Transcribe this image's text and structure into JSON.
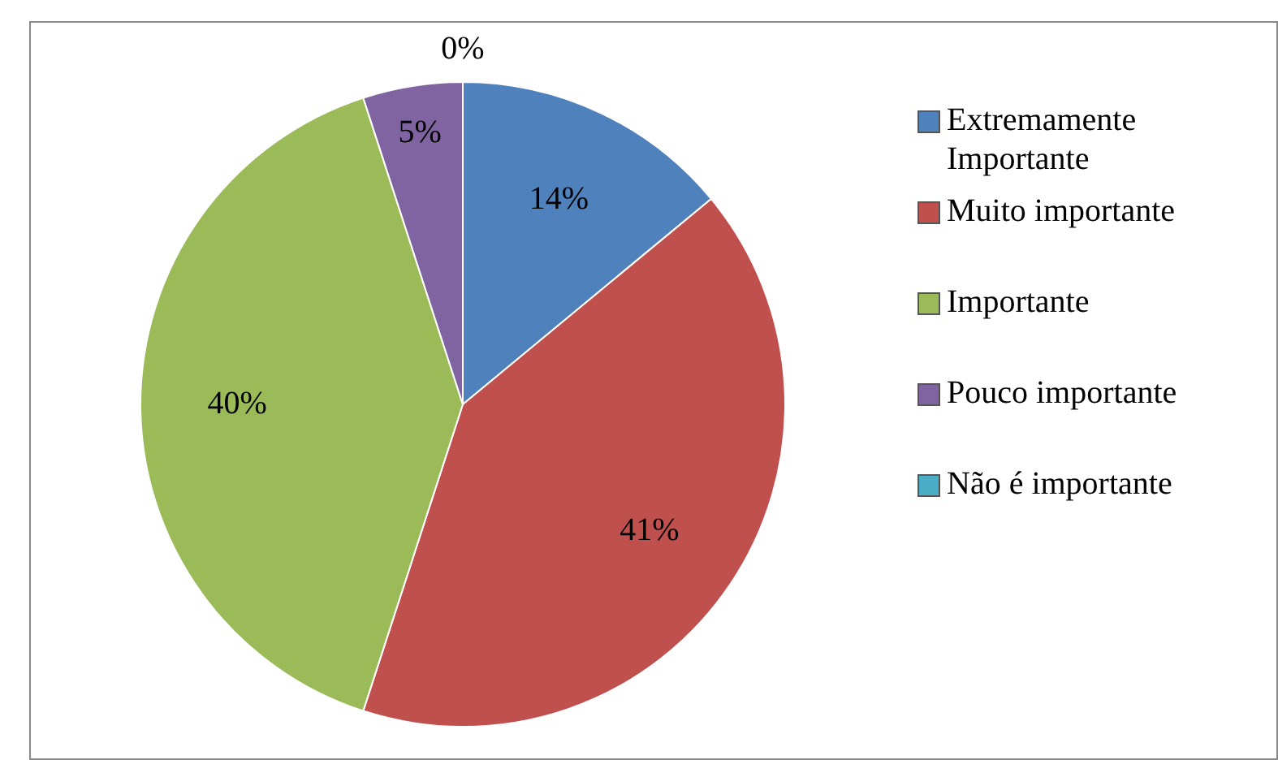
{
  "chart_data": {
    "type": "pie",
    "categories": [
      "Extremamente Importante",
      "Muito importante",
      "Importante",
      "Pouco importante",
      "Não é importante"
    ],
    "values": [
      14,
      41,
      40,
      5,
      0
    ],
    "colors": [
      "#4f81bd",
      "#c0504d",
      "#9bbb59",
      "#8064a2",
      "#4bacc6"
    ],
    "value_labels": [
      "14%",
      "41%",
      "40%",
      "5%",
      "0%"
    ],
    "legend": "right"
  }
}
